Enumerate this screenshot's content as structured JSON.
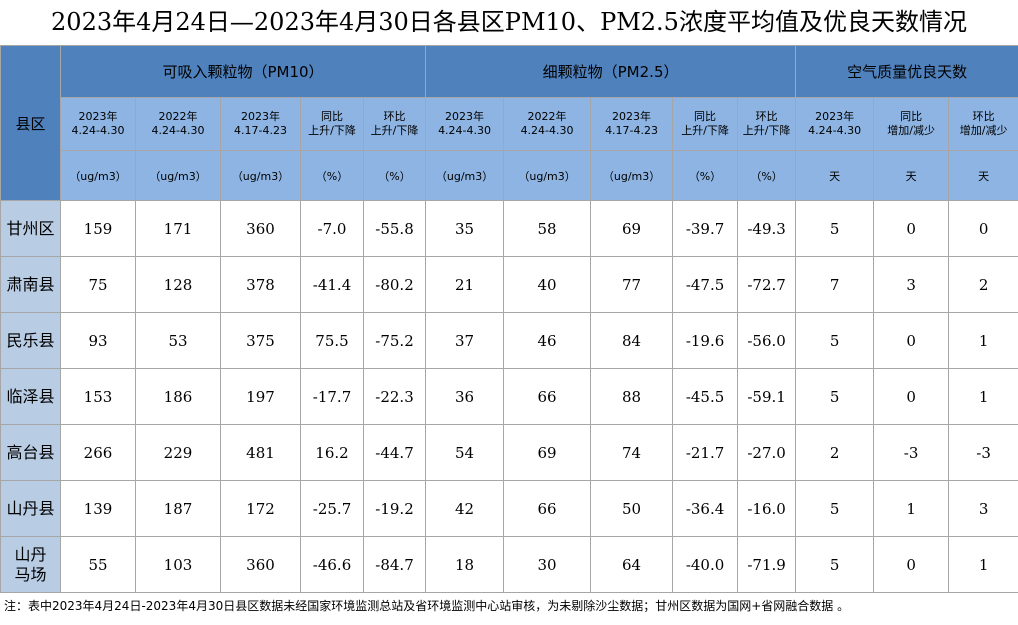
{
  "title": "2023年4月24日—2023年4月30日各县区PM10、PM2.5浓度平均值及优良天数情况",
  "table": {
    "region_header": "县区",
    "group_headers": [
      "可吸入颗粒物（PM10）",
      "细颗粒物（PM2.5）",
      "空气质量优良天数"
    ],
    "sub_headers": [
      "2023年\n4.24-4.30",
      "2022年\n4.24-4.30",
      "2023年\n4.17-4.23",
      "同比\n上升/下降",
      "环比\n上升/下降",
      "2023年\n4.24-4.30",
      "2022年\n4.24-4.30",
      "2023年\n4.17-4.23",
      "同比\n上升/下降",
      "环比\n上升/下降",
      "2023年\n4.24-4.30",
      "同比\n增加/减少",
      "环比\n增加/减少"
    ],
    "units": [
      "（ug/m3）",
      "（ug/m3）",
      "（ug/m3）",
      "（%）",
      "（%）",
      "（ug/m3）",
      "（ug/m3）",
      "（ug/m3）",
      "（%）",
      "（%）",
      "天",
      "天",
      "天"
    ],
    "rows": [
      [
        "甘州区",
        "159",
        "171",
        "360",
        "-7.0",
        "-55.8",
        "35",
        "58",
        "69",
        "-39.7",
        "-49.3",
        "5",
        "0",
        "0"
      ],
      [
        "肃南县",
        "75",
        "128",
        "378",
        "-41.4",
        "-80.2",
        "21",
        "40",
        "77",
        "-47.5",
        "-72.7",
        "7",
        "3",
        "2"
      ],
      [
        "民乐县",
        "93",
        "53",
        "375",
        "75.5",
        "-75.2",
        "37",
        "46",
        "84",
        "-19.6",
        "-56.0",
        "5",
        "0",
        "1"
      ],
      [
        "临泽县",
        "153",
        "186",
        "197",
        "-17.7",
        "-22.3",
        "36",
        "66",
        "88",
        "-45.5",
        "-59.1",
        "5",
        "0",
        "1"
      ],
      [
        "高台县",
        "266",
        "229",
        "481",
        "16.2",
        "-44.7",
        "54",
        "69",
        "74",
        "-21.7",
        "-27.0",
        "2",
        "-3",
        "-3"
      ],
      [
        "山丹县",
        "139",
        "187",
        "172",
        "-25.7",
        "-19.2",
        "42",
        "66",
        "50",
        "-36.4",
        "-16.0",
        "5",
        "1",
        "3"
      ],
      [
        "山丹\n马场",
        "55",
        "103",
        "360",
        "-46.6",
        "-84.7",
        "18",
        "30",
        "64",
        "-40.0",
        "-71.9",
        "5",
        "0",
        "1"
      ]
    ]
  },
  "note": "注：表中2023年4月24日-2023年4月30日县区数据未经国家环境监测总站及省环境监测中心站审核，为未剔除沙尘数据；甘州区数据为国网+省网融合数据 。"
}
